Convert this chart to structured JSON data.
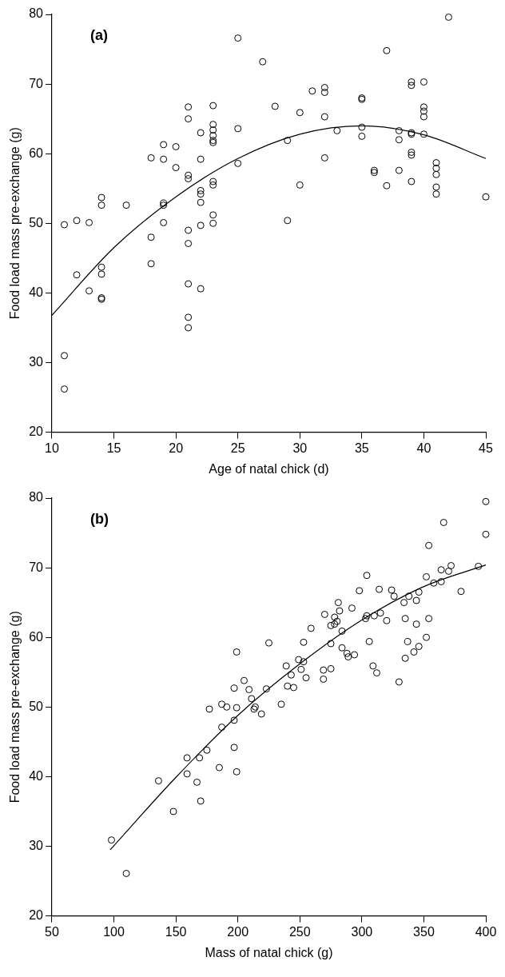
{
  "chart_data": [
    {
      "type": "scatter",
      "annotations": [
        "(a)"
      ],
      "xlabel": "Age of natal chick (d)",
      "ylabel": "Food load mass pre-exchange (g)",
      "xlim": [
        10,
        45
      ],
      "xticks": [
        10,
        15,
        20,
        25,
        30,
        35,
        40,
        45
      ],
      "ylim": [
        20,
        80
      ],
      "yticks": [
        20,
        30,
        40,
        50,
        60,
        70,
        80
      ],
      "series": [
        {
          "type": "scatter",
          "marker": "circle",
          "color": "#000000",
          "x": [
            11,
            11,
            11,
            12,
            12,
            13,
            13,
            14,
            14,
            14,
            14,
            14,
            14,
            16,
            18,
            18,
            18,
            19,
            19,
            19,
            19,
            19,
            20,
            20,
            21,
            21,
            21,
            21,
            21,
            21,
            21,
            21,
            21,
            22,
            22,
            22,
            22,
            22,
            22,
            22,
            23,
            23,
            23,
            23,
            23,
            23,
            23,
            23,
            23,
            23,
            25,
            25,
            25,
            27,
            28,
            29,
            29,
            30,
            30,
            31,
            32,
            32,
            32,
            32,
            33,
            35,
            35,
            35,
            35,
            36,
            36,
            37,
            37,
            38,
            38,
            38,
            39,
            39,
            39,
            39,
            39,
            39,
            39,
            40,
            40,
            40,
            40,
            40,
            41,
            41,
            41,
            41,
            41,
            42,
            45
          ],
          "values": [
            49.8,
            31,
            26.2,
            50.4,
            42.6,
            50.1,
            40.3,
            53.7,
            52.6,
            43.7,
            42.7,
            39.3,
            39.1,
            52.6,
            59.4,
            48,
            44.2,
            61.3,
            59.2,
            52.9,
            52.6,
            50.1,
            61,
            58,
            66.7,
            65,
            56.9,
            56.4,
            49,
            47.1,
            41.3,
            36.5,
            35,
            63,
            59.2,
            54.7,
            54.2,
            53,
            49.7,
            40.6,
            66.9,
            64.2,
            63.4,
            62.6,
            61.9,
            61.6,
            56,
            55.5,
            51.2,
            50,
            76.6,
            63.6,
            58.6,
            73.2,
            66.8,
            61.9,
            50.4,
            65.9,
            55.5,
            69,
            69.5,
            68.8,
            65.3,
            59.4,
            63.3,
            68,
            67.8,
            63.8,
            62.5,
            57.6,
            57.3,
            74.8,
            55.4,
            63.3,
            62,
            57.6,
            70.3,
            69.8,
            63,
            62.8,
            60.2,
            59.8,
            56,
            70.3,
            66.7,
            66.1,
            65.3,
            62.8,
            58.7,
            57.9,
            57,
            55.2,
            54.2,
            79.6,
            53.8
          ]
        },
        {
          "type": "line",
          "color": "#000000",
          "x": [
            10,
            15,
            20,
            25,
            30,
            35,
            40,
            45
          ],
          "values": [
            36.8,
            46.5,
            53.8,
            59.3,
            62.8,
            64.0,
            62.7,
            59.3
          ]
        }
      ]
    },
    {
      "type": "scatter",
      "annotations": [
        "(b)"
      ],
      "xlabel": "Mass of natal chick (g)",
      "ylabel": "Food load mass pre-exchange (g)",
      "xlim": [
        50,
        400
      ],
      "xticks": [
        50,
        100,
        150,
        200,
        250,
        300,
        350,
        400
      ],
      "ylim": [
        20,
        80
      ],
      "yticks": [
        20,
        30,
        40,
        50,
        60,
        70,
        80
      ],
      "series": [
        {
          "type": "scatter",
          "marker": "circle",
          "color": "#000000",
          "x": [
            98,
            110,
            136,
            148,
            159,
            159,
            167,
            169,
            170,
            175,
            177,
            185,
            187,
            187,
            191,
            197,
            197,
            197,
            199,
            199,
            199,
            205,
            209,
            211,
            214,
            213,
            219,
            223,
            225,
            235,
            239,
            240,
            243,
            245,
            249,
            251,
            253,
            253,
            255,
            259,
            269,
            269,
            270,
            275,
            275,
            275,
            278,
            278,
            280,
            281,
            282,
            284,
            284,
            288,
            289,
            292,
            294,
            298,
            303,
            304,
            304,
            306,
            309,
            310,
            312,
            314,
            315,
            320,
            324,
            326,
            330,
            334,
            335,
            335,
            337,
            338,
            342,
            344,
            344,
            346,
            346,
            352,
            352,
            354,
            354,
            358,
            364,
            364,
            366,
            370,
            372,
            380,
            394,
            400,
            400
          ],
          "values": [
            30.9,
            26.1,
            39.4,
            35,
            42.7,
            40.4,
            39.2,
            42.7,
            36.5,
            43.8,
            49.7,
            41.3,
            50.4,
            47.1,
            50,
            52.7,
            48.1,
            44.2,
            57.9,
            49.9,
            40.7,
            53.8,
            52.5,
            51.2,
            50,
            49.7,
            49,
            52.6,
            59.2,
            50.4,
            55.9,
            53,
            54.6,
            52.8,
            56.8,
            55.4,
            56.5,
            59.3,
            54.2,
            61.3,
            55.3,
            54,
            63.3,
            55.5,
            61.7,
            59.1,
            62.9,
            61.9,
            62.3,
            65,
            63.8,
            60.9,
            58.5,
            57.7,
            57.2,
            64.2,
            57.5,
            66.7,
            62.7,
            68.9,
            63.1,
            59.4,
            55.9,
            63.1,
            54.9,
            66.9,
            63.5,
            62.4,
            66.8,
            65.9,
            53.6,
            65,
            62.7,
            57,
            59.4,
            65.9,
            57.9,
            65.3,
            61.9,
            66.5,
            58.7,
            68.7,
            60,
            73.2,
            62.7,
            67.8,
            69.7,
            68,
            76.5,
            69.5,
            70.3,
            66.6,
            70.2,
            79.5,
            74.8
          ]
        },
        {
          "type": "line",
          "color": "#000000",
          "x": [
            97,
            150,
            200,
            250,
            300,
            350,
            400
          ],
          "values": [
            29.5,
            39.9,
            48.8,
            56.2,
            62.5,
            67.3,
            70.4
          ]
        }
      ]
    }
  ]
}
